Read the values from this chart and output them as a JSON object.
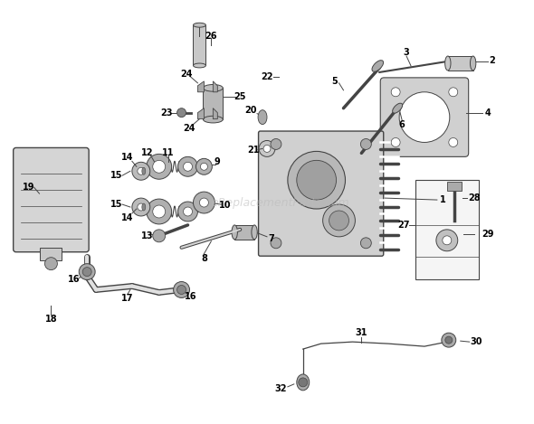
{
  "bg_color": "#ffffff",
  "watermark": "eReplacementParts.com",
  "line_color": "#444444",
  "label_color": "#000000",
  "font_size": 7.0,
  "parts_color": "#c8c8c8",
  "head_color": "#d0d0d0"
}
